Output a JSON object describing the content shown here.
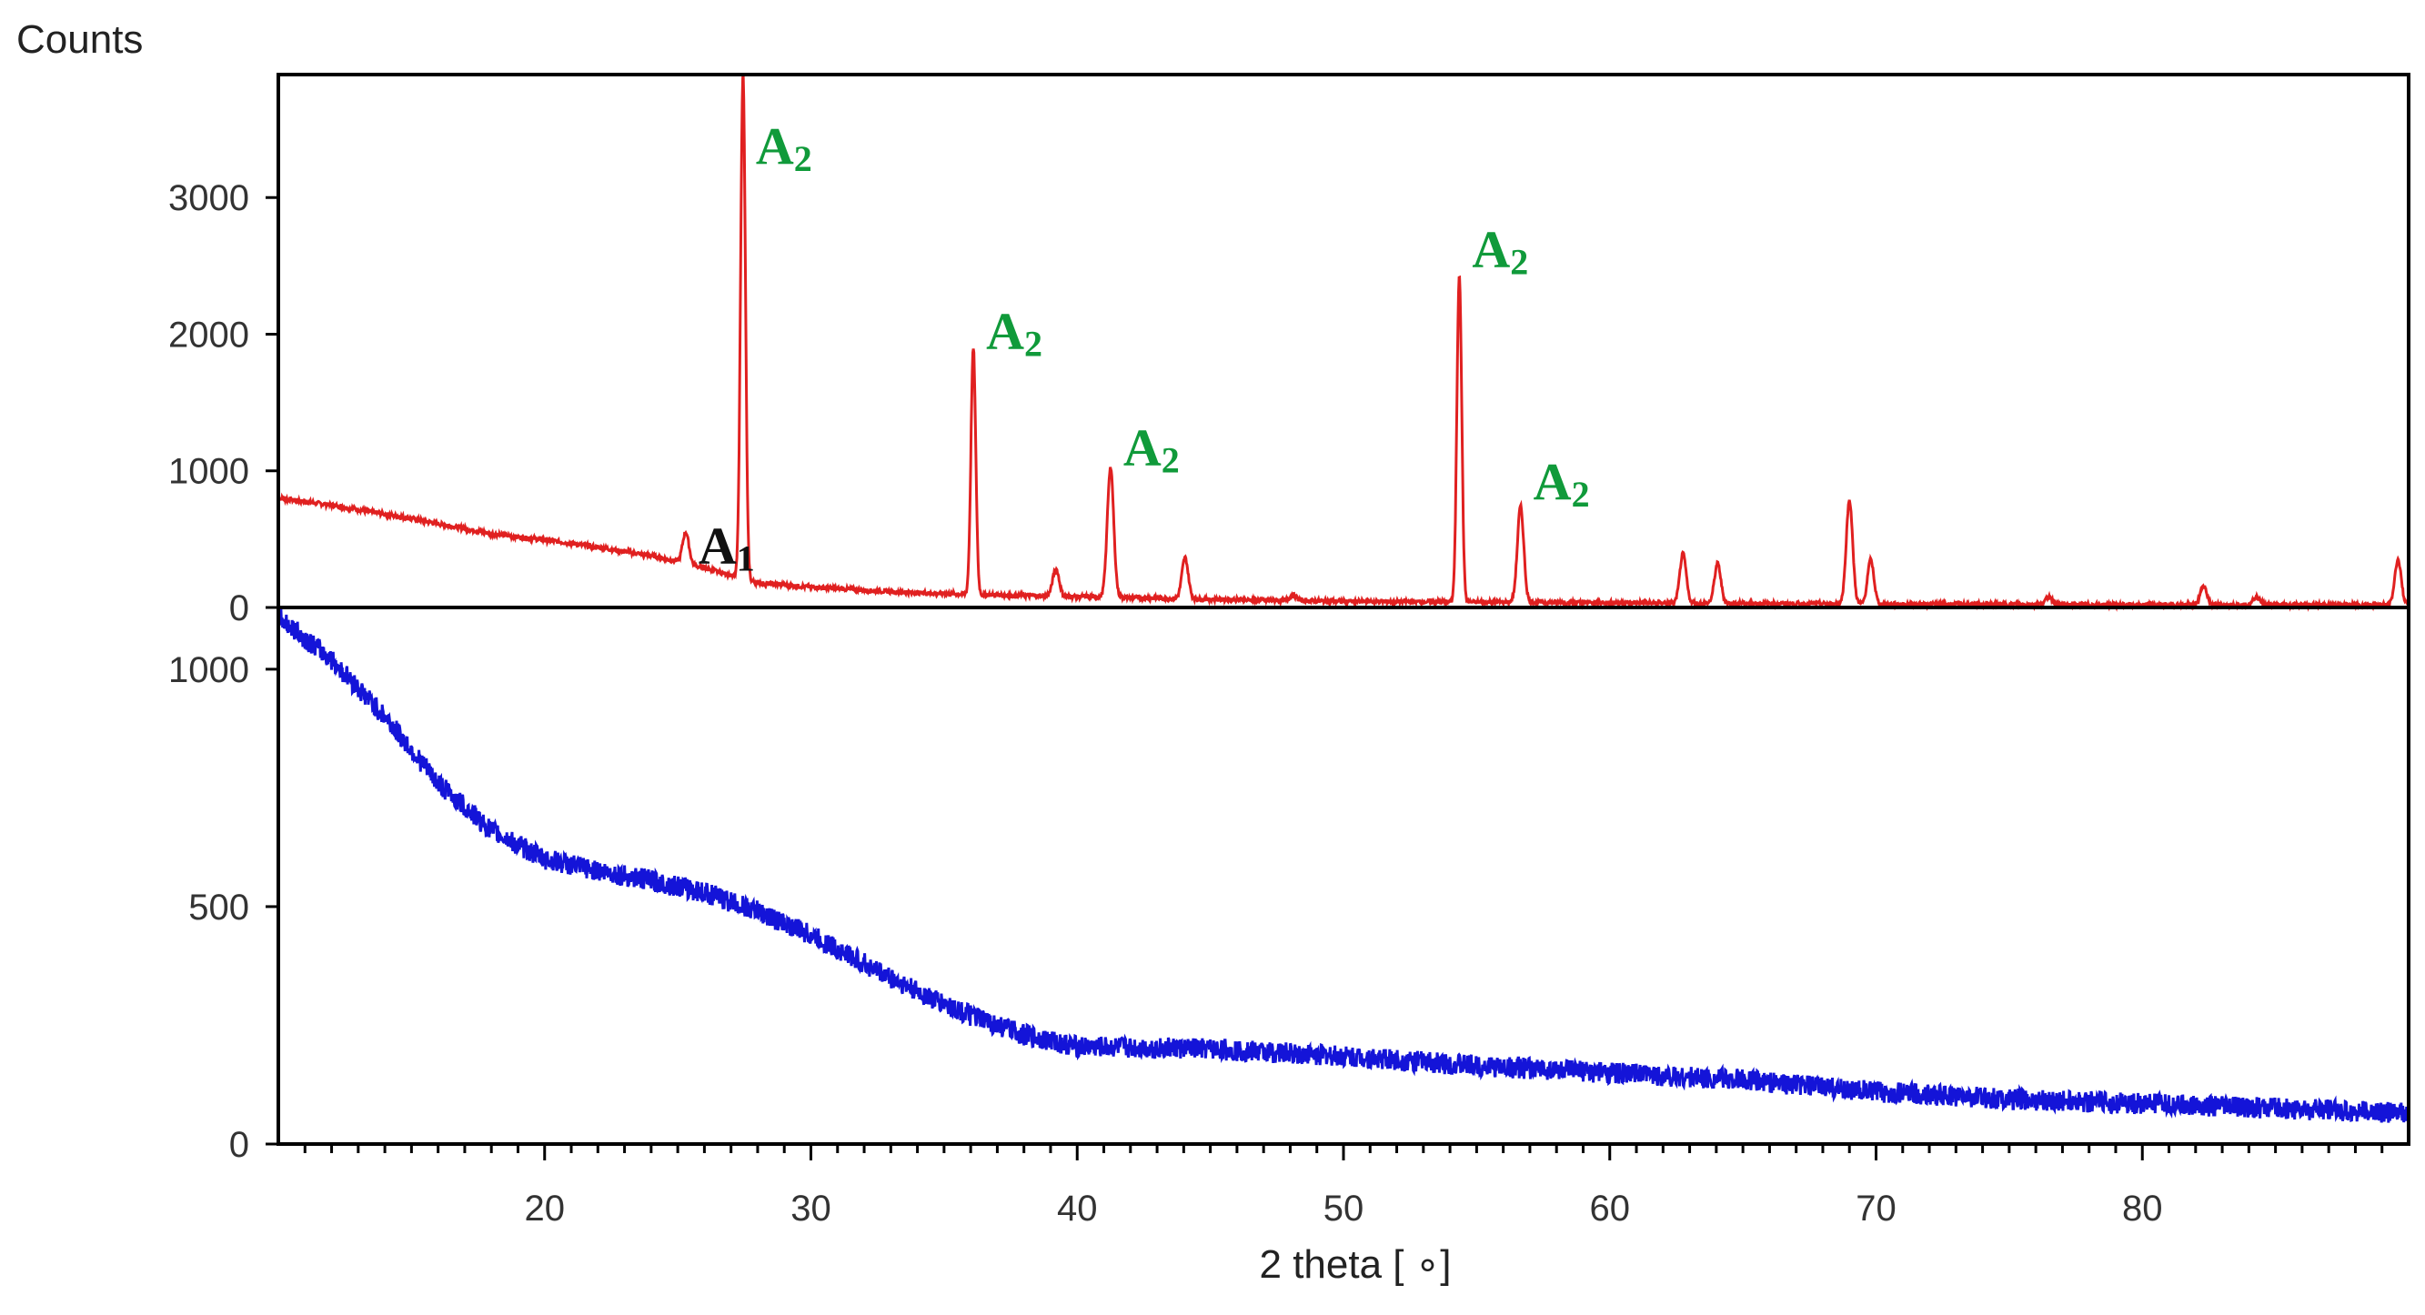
{
  "chart_data": [
    {
      "type": "line",
      "panel": "top",
      "ylabel": "Counts",
      "xlim": [
        10,
        90
      ],
      "ylim": [
        0,
        3900
      ],
      "yticks": [
        0,
        1000,
        2000,
        3000
      ],
      "ytick_labels": [
        "0",
        "1000",
        "2000",
        "3000"
      ],
      "grid": false,
      "series": [
        {
          "color": "#e02020",
          "baseline": [
            [
              10,
              800
            ],
            [
              12,
              750
            ],
            [
              15,
              650
            ],
            [
              18,
              540
            ],
            [
              21,
              470
            ],
            [
              24,
              380
            ],
            [
              26,
              290
            ],
            [
              28,
              180
            ],
            [
              30,
              150
            ],
            [
              33,
              115
            ],
            [
              36,
              95
            ],
            [
              40,
              80
            ],
            [
              45,
              60
            ],
            [
              50,
              45
            ],
            [
              60,
              35
            ],
            [
              70,
              25
            ],
            [
              80,
              20
            ],
            [
              90,
              20
            ]
          ],
          "peaks": [
            [
              25.3,
              230
            ],
            [
              27.45,
              3700
            ],
            [
              36.1,
              1800
            ],
            [
              39.2,
              200
            ],
            [
              41.25,
              950
            ],
            [
              44.05,
              300
            ],
            [
              48.1,
              40
            ],
            [
              54.35,
              2400
            ],
            [
              56.65,
              700
            ],
            [
              62.75,
              360
            ],
            [
              64.05,
              290
            ],
            [
              69.0,
              760
            ],
            [
              69.8,
              320
            ],
            [
              76.5,
              60
            ],
            [
              82.3,
              140
            ],
            [
              84.3,
              60
            ],
            [
              89.6,
              330
            ]
          ]
        }
      ],
      "annotations": [
        {
          "label": "A",
          "sub": "1",
          "x": 25.3,
          "y": 230,
          "color": "#111111"
        },
        {
          "label": "A",
          "sub": "2",
          "x": 27.45,
          "y": 3700,
          "color": "#109a3a"
        },
        {
          "label": "A",
          "sub": "2",
          "x": 36.1,
          "y": 1800,
          "color": "#109a3a"
        },
        {
          "label": "A",
          "sub": "2",
          "x": 41.25,
          "y": 950,
          "color": "#109a3a"
        },
        {
          "label": "A",
          "sub": "2",
          "x": 54.35,
          "y": 2400,
          "color": "#109a3a"
        },
        {
          "label": "A",
          "sub": "2",
          "x": 56.65,
          "y": 700,
          "color": "#109a3a"
        }
      ]
    },
    {
      "type": "line",
      "panel": "bottom",
      "xlabel": "2 theta [ ∘]",
      "xlim": [
        10,
        90
      ],
      "ylim": [
        0,
        1130
      ],
      "yticks": [
        0,
        500,
        1000
      ],
      "ytick_labels": [
        "0",
        "500",
        "1000"
      ],
      "xticks": [
        20,
        30,
        40,
        50,
        60,
        70,
        80
      ],
      "xtick_labels": [
        "20",
        "30",
        "40",
        "50",
        "60",
        "70",
        "80"
      ],
      "grid": false,
      "series": [
        {
          "color": "#1414d8",
          "points": [
            [
              10,
              1110
            ],
            [
              12,
              1020
            ],
            [
              14,
              900
            ],
            [
              16,
              760
            ],
            [
              18,
              660
            ],
            [
              20,
              600
            ],
            [
              22,
              575
            ],
            [
              24,
              555
            ],
            [
              26,
              530
            ],
            [
              28,
              490
            ],
            [
              30,
              440
            ],
            [
              32,
              380
            ],
            [
              34,
              320
            ],
            [
              36,
              270
            ],
            [
              38,
              230
            ],
            [
              40,
              205
            ],
            [
              45,
              200
            ],
            [
              50,
              185
            ],
            [
              55,
              165
            ],
            [
              60,
              150
            ],
            [
              65,
              135
            ],
            [
              70,
              110
            ],
            [
              75,
              95
            ],
            [
              80,
              85
            ],
            [
              85,
              75
            ],
            [
              90,
              65
            ]
          ]
        }
      ]
    }
  ]
}
